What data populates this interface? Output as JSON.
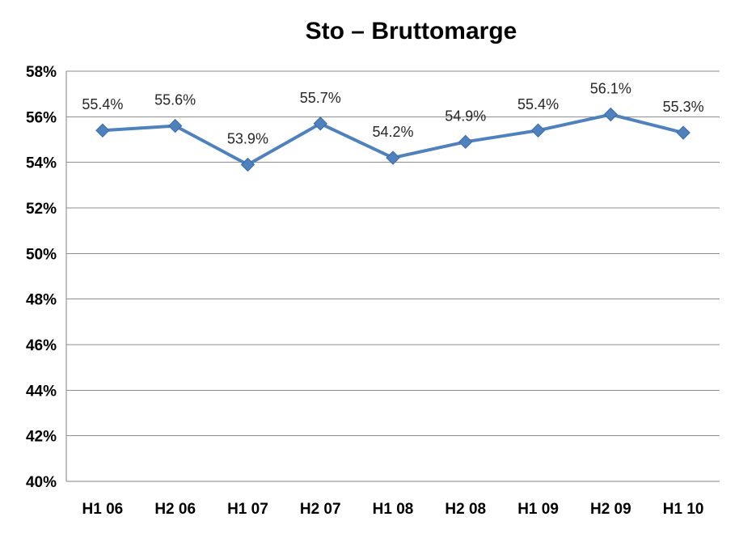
{
  "chart_data": {
    "type": "line",
    "title": "Sto – Bruttomarge",
    "categories": [
      "H1 06",
      "H2 06",
      "H1 07",
      "H2 07",
      "H1 08",
      "H2 08",
      "H1 09",
      "H2 09",
      "H1 10"
    ],
    "series": [
      {
        "name": "Bruttomarge",
        "values": [
          55.4,
          55.6,
          53.9,
          55.7,
          54.2,
          54.9,
          55.4,
          56.1,
          55.3
        ],
        "labels": [
          "55.4%",
          "55.6%",
          "53.9%",
          "55.7%",
          "54.2%",
          "54.9%",
          "55.4%",
          "56.1%",
          "55.3%"
        ]
      }
    ],
    "ylim": [
      40,
      58
    ],
    "ytick_step": 2,
    "ytick_labels": [
      "40%",
      "42%",
      "44%",
      "46%",
      "48%",
      "50%",
      "52%",
      "54%",
      "56%",
      "58%"
    ],
    "grid": true,
    "legend": "none",
    "marker": "diamond",
    "colors": {
      "line": "#4F81BD",
      "marker_fill": "#4F81BD",
      "marker_stroke": "#3C6CA5",
      "gridline": "#8F8F8F",
      "axis_line": "#808080",
      "axis_text": "#000000",
      "data_label_text": "#262626",
      "background": "#FFFFFF"
    }
  }
}
